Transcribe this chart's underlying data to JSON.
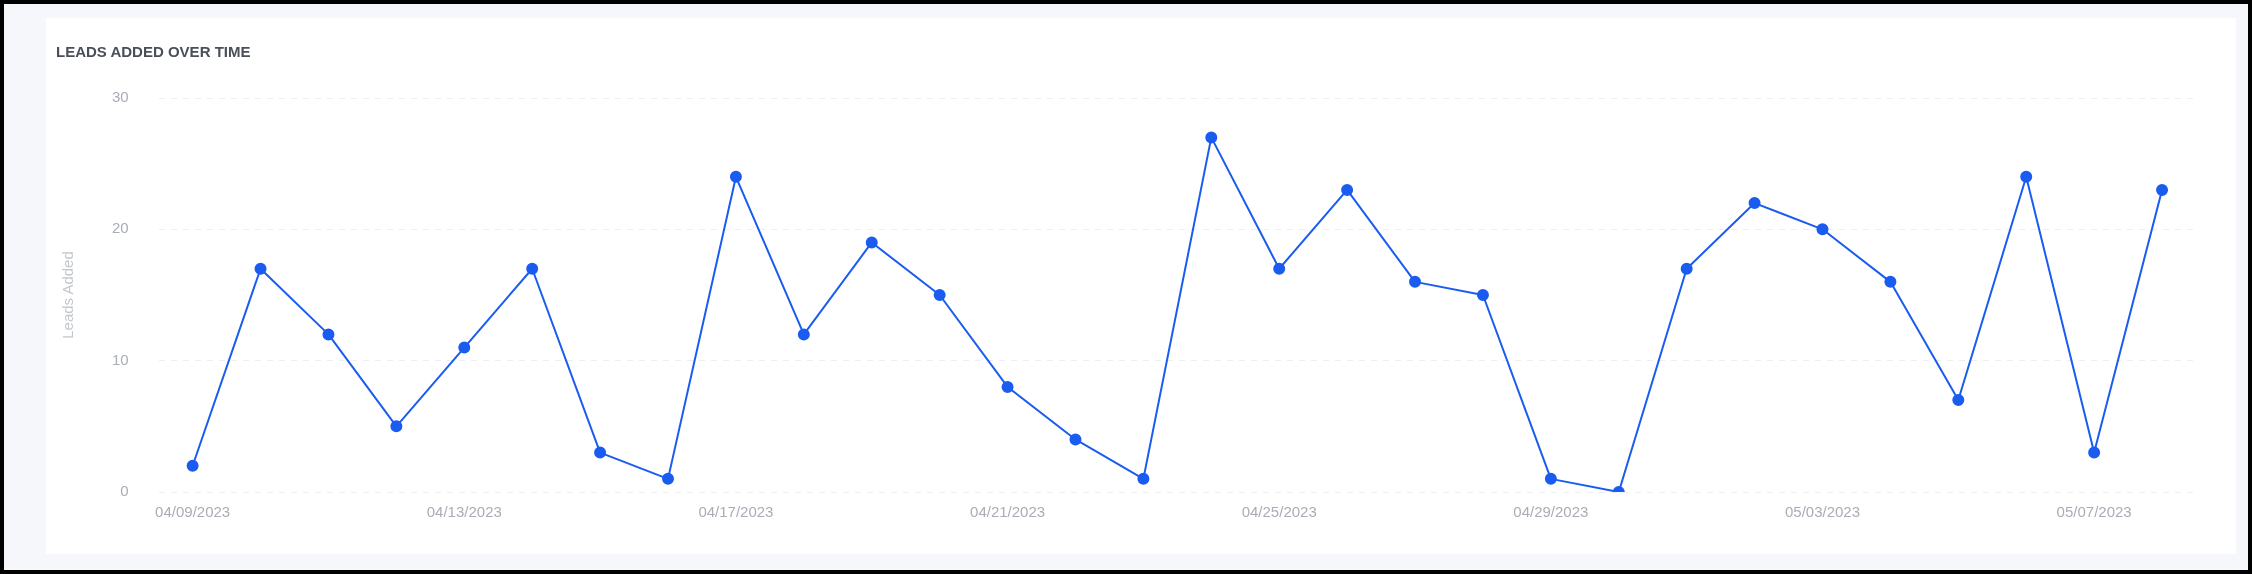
{
  "chart_data": {
    "type": "line",
    "title": "LEADS ADDED OVER TIME",
    "ylabel": "Leads Added",
    "categories": [
      "04/09/2023",
      null,
      null,
      null,
      "04/13/2023",
      null,
      null,
      null,
      "04/17/2023",
      null,
      null,
      null,
      "04/21/2023",
      null,
      null,
      null,
      "04/25/2023",
      null,
      null,
      null,
      "04/29/2023",
      null,
      null,
      null,
      "05/03/2023",
      null,
      null,
      null,
      "05/07/2023",
      null
    ],
    "series": [
      {
        "color": "#1a5cf0",
        "values": [
          2,
          17,
          12,
          5,
          11,
          17,
          3,
          1,
          24,
          12,
          19,
          15,
          8,
          4,
          1,
          27,
          17,
          23,
          16,
          15,
          1,
          0,
          17,
          22,
          20,
          16,
          7,
          24,
          3,
          23
        ]
      }
    ],
    "ylim": [
      0,
      30
    ],
    "yticks": [
      0,
      10,
      20,
      30
    ],
    "grid": "y",
    "legend": false,
    "marker": "circle",
    "line_style": "solid"
  }
}
